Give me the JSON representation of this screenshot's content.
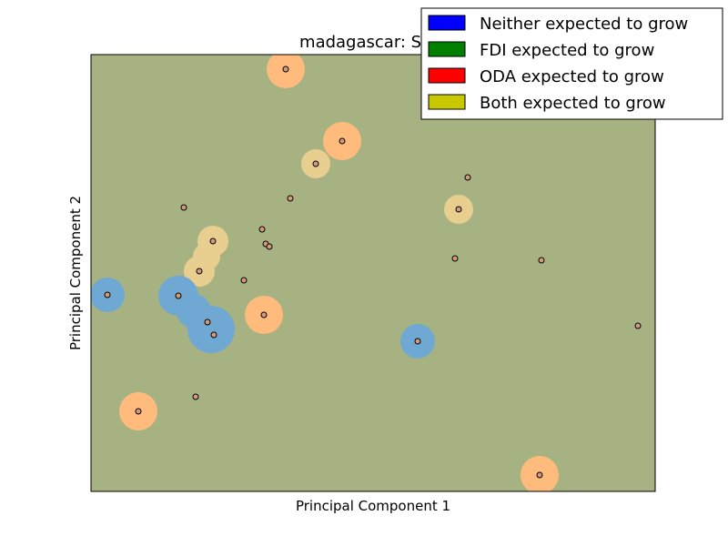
{
  "chart_data": {
    "type": "scatter",
    "title": "madagascar: SVM",
    "xlabel": "Principal Component 1",
    "ylabel": "Principal Component 2",
    "xlim": [
      0,
      620
    ],
    "ylim": [
      0,
      480
    ],
    "grid": false,
    "ticks": false,
    "legend_position": "top-right",
    "background_color": "#a6b282",
    "legend": [
      {
        "label": "Neither expected to grow",
        "color": "#0000ff"
      },
      {
        "label": "FDI expected to grow",
        "color": "#008000"
      },
      {
        "label": "ODA expected to grow",
        "color": "#ff0000"
      },
      {
        "label": "Both expected to grow",
        "color": "#c8c800"
      }
    ],
    "region_colors": {
      "neither": "#6fa8d2",
      "oda": "#ffbb7b",
      "both": "#e8cf8f"
    },
    "regions": [
      {
        "class": "oda",
        "x": 214,
        "y": 464,
        "r": 21
      },
      {
        "class": "oda",
        "x": 276,
        "y": 385,
        "r": 21
      },
      {
        "class": "oda",
        "x": 190,
        "y": 194,
        "r": 21
      },
      {
        "class": "oda",
        "x": 52,
        "y": 88,
        "r": 21
      },
      {
        "class": "oda",
        "x": 493,
        "y": 18,
        "r": 21
      },
      {
        "class": "both",
        "x": 247,
        "y": 360,
        "r": 16
      },
      {
        "class": "both",
        "x": 404,
        "y": 310,
        "r": 16
      },
      {
        "class": "both",
        "x": 134,
        "y": 275,
        "r": 17
      },
      {
        "class": "both",
        "x": 119,
        "y": 242,
        "r": 17
      },
      {
        "class": "both",
        "x": 127,
        "y": 258,
        "r": 15
      },
      {
        "class": "neither",
        "x": 18,
        "y": 216,
        "r": 19
      },
      {
        "class": "neither",
        "x": 96,
        "y": 215,
        "r": 22
      },
      {
        "class": "neither",
        "x": 132,
        "y": 178,
        "r": 26
      },
      {
        "class": "neither",
        "x": 113,
        "y": 198,
        "r": 19
      },
      {
        "class": "neither",
        "x": 359,
        "y": 165,
        "r": 19
      }
    ],
    "points": [
      {
        "x": 214,
        "y": 464
      },
      {
        "x": 276,
        "y": 385
      },
      {
        "x": 247,
        "y": 360
      },
      {
        "x": 414,
        "y": 345
      },
      {
        "x": 404,
        "y": 310
      },
      {
        "x": 219,
        "y": 322
      },
      {
        "x": 102,
        "y": 312
      },
      {
        "x": 188,
        "y": 288
      },
      {
        "x": 134,
        "y": 275
      },
      {
        "x": 192,
        "y": 272
      },
      {
        "x": 196,
        "y": 269
      },
      {
        "x": 400,
        "y": 256
      },
      {
        "x": 495,
        "y": 254
      },
      {
        "x": 119,
        "y": 242
      },
      {
        "x": 168,
        "y": 232
      },
      {
        "x": 18,
        "y": 216
      },
      {
        "x": 96,
        "y": 215
      },
      {
        "x": 190,
        "y": 194
      },
      {
        "x": 128,
        "y": 186
      },
      {
        "x": 135,
        "y": 172
      },
      {
        "x": 601,
        "y": 182
      },
      {
        "x": 359,
        "y": 165
      },
      {
        "x": 115,
        "y": 104
      },
      {
        "x": 52,
        "y": 88
      },
      {
        "x": 493,
        "y": 18
      }
    ]
  }
}
